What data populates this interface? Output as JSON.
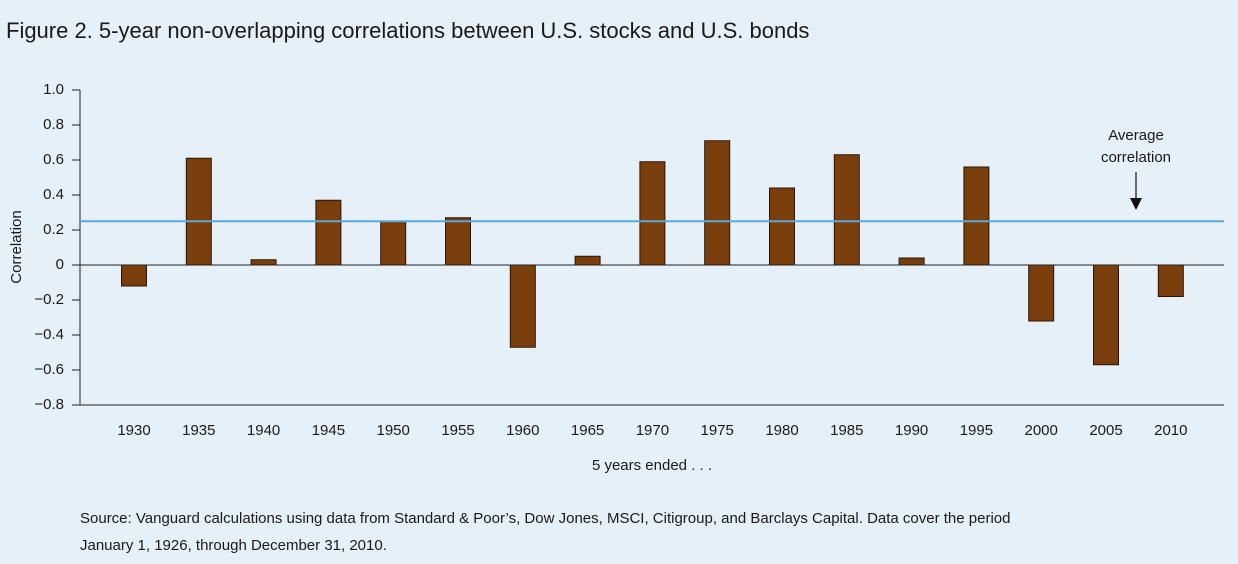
{
  "chart_data": {
    "type": "bar",
    "title": "Figure 2. 5-year non-overlapping correlations between U.S. stocks and U.S. bonds",
    "ylabel": "Correlation",
    "xlabel": "5 years ended . . .",
    "categories": [
      "1930",
      "1935",
      "1940",
      "1945",
      "1950",
      "1955",
      "1960",
      "1965",
      "1970",
      "1975",
      "1980",
      "1985",
      "1990",
      "1995",
      "2000",
      "2005",
      "2010"
    ],
    "values": [
      -0.12,
      0.61,
      0.03,
      0.37,
      0.25,
      0.27,
      -0.47,
      0.05,
      0.59,
      0.71,
      0.44,
      0.63,
      0.04,
      0.56,
      -0.32,
      -0.57,
      -0.18
    ],
    "color": "#7a3e0c",
    "ylim": [
      -0.8,
      1
    ],
    "yticks": [
      {
        "value": 1,
        "label": "1.0"
      },
      0.8,
      0.6,
      0.4,
      0.2,
      0,
      {
        "value": -0.2,
        "label": "−0.2"
      },
      {
        "value": -0.4,
        "label": "−0.4"
      },
      {
        "value": -0.6,
        "label": "−0.6"
      },
      {
        "value": -0.8,
        "label": "−0.8"
      }
    ],
    "average": 0.25,
    "average_color": "#5aaad8",
    "average_label": [
      "Average",
      "correlation"
    ],
    "source": [
      "Source: Vanguard calculations using data from Standard & Poor’s, Dow Jones, MSCI, Citigroup, and Barclays Capital. Data cover the period",
      "January 1, 1926, through December 31, 2010."
    ]
  }
}
